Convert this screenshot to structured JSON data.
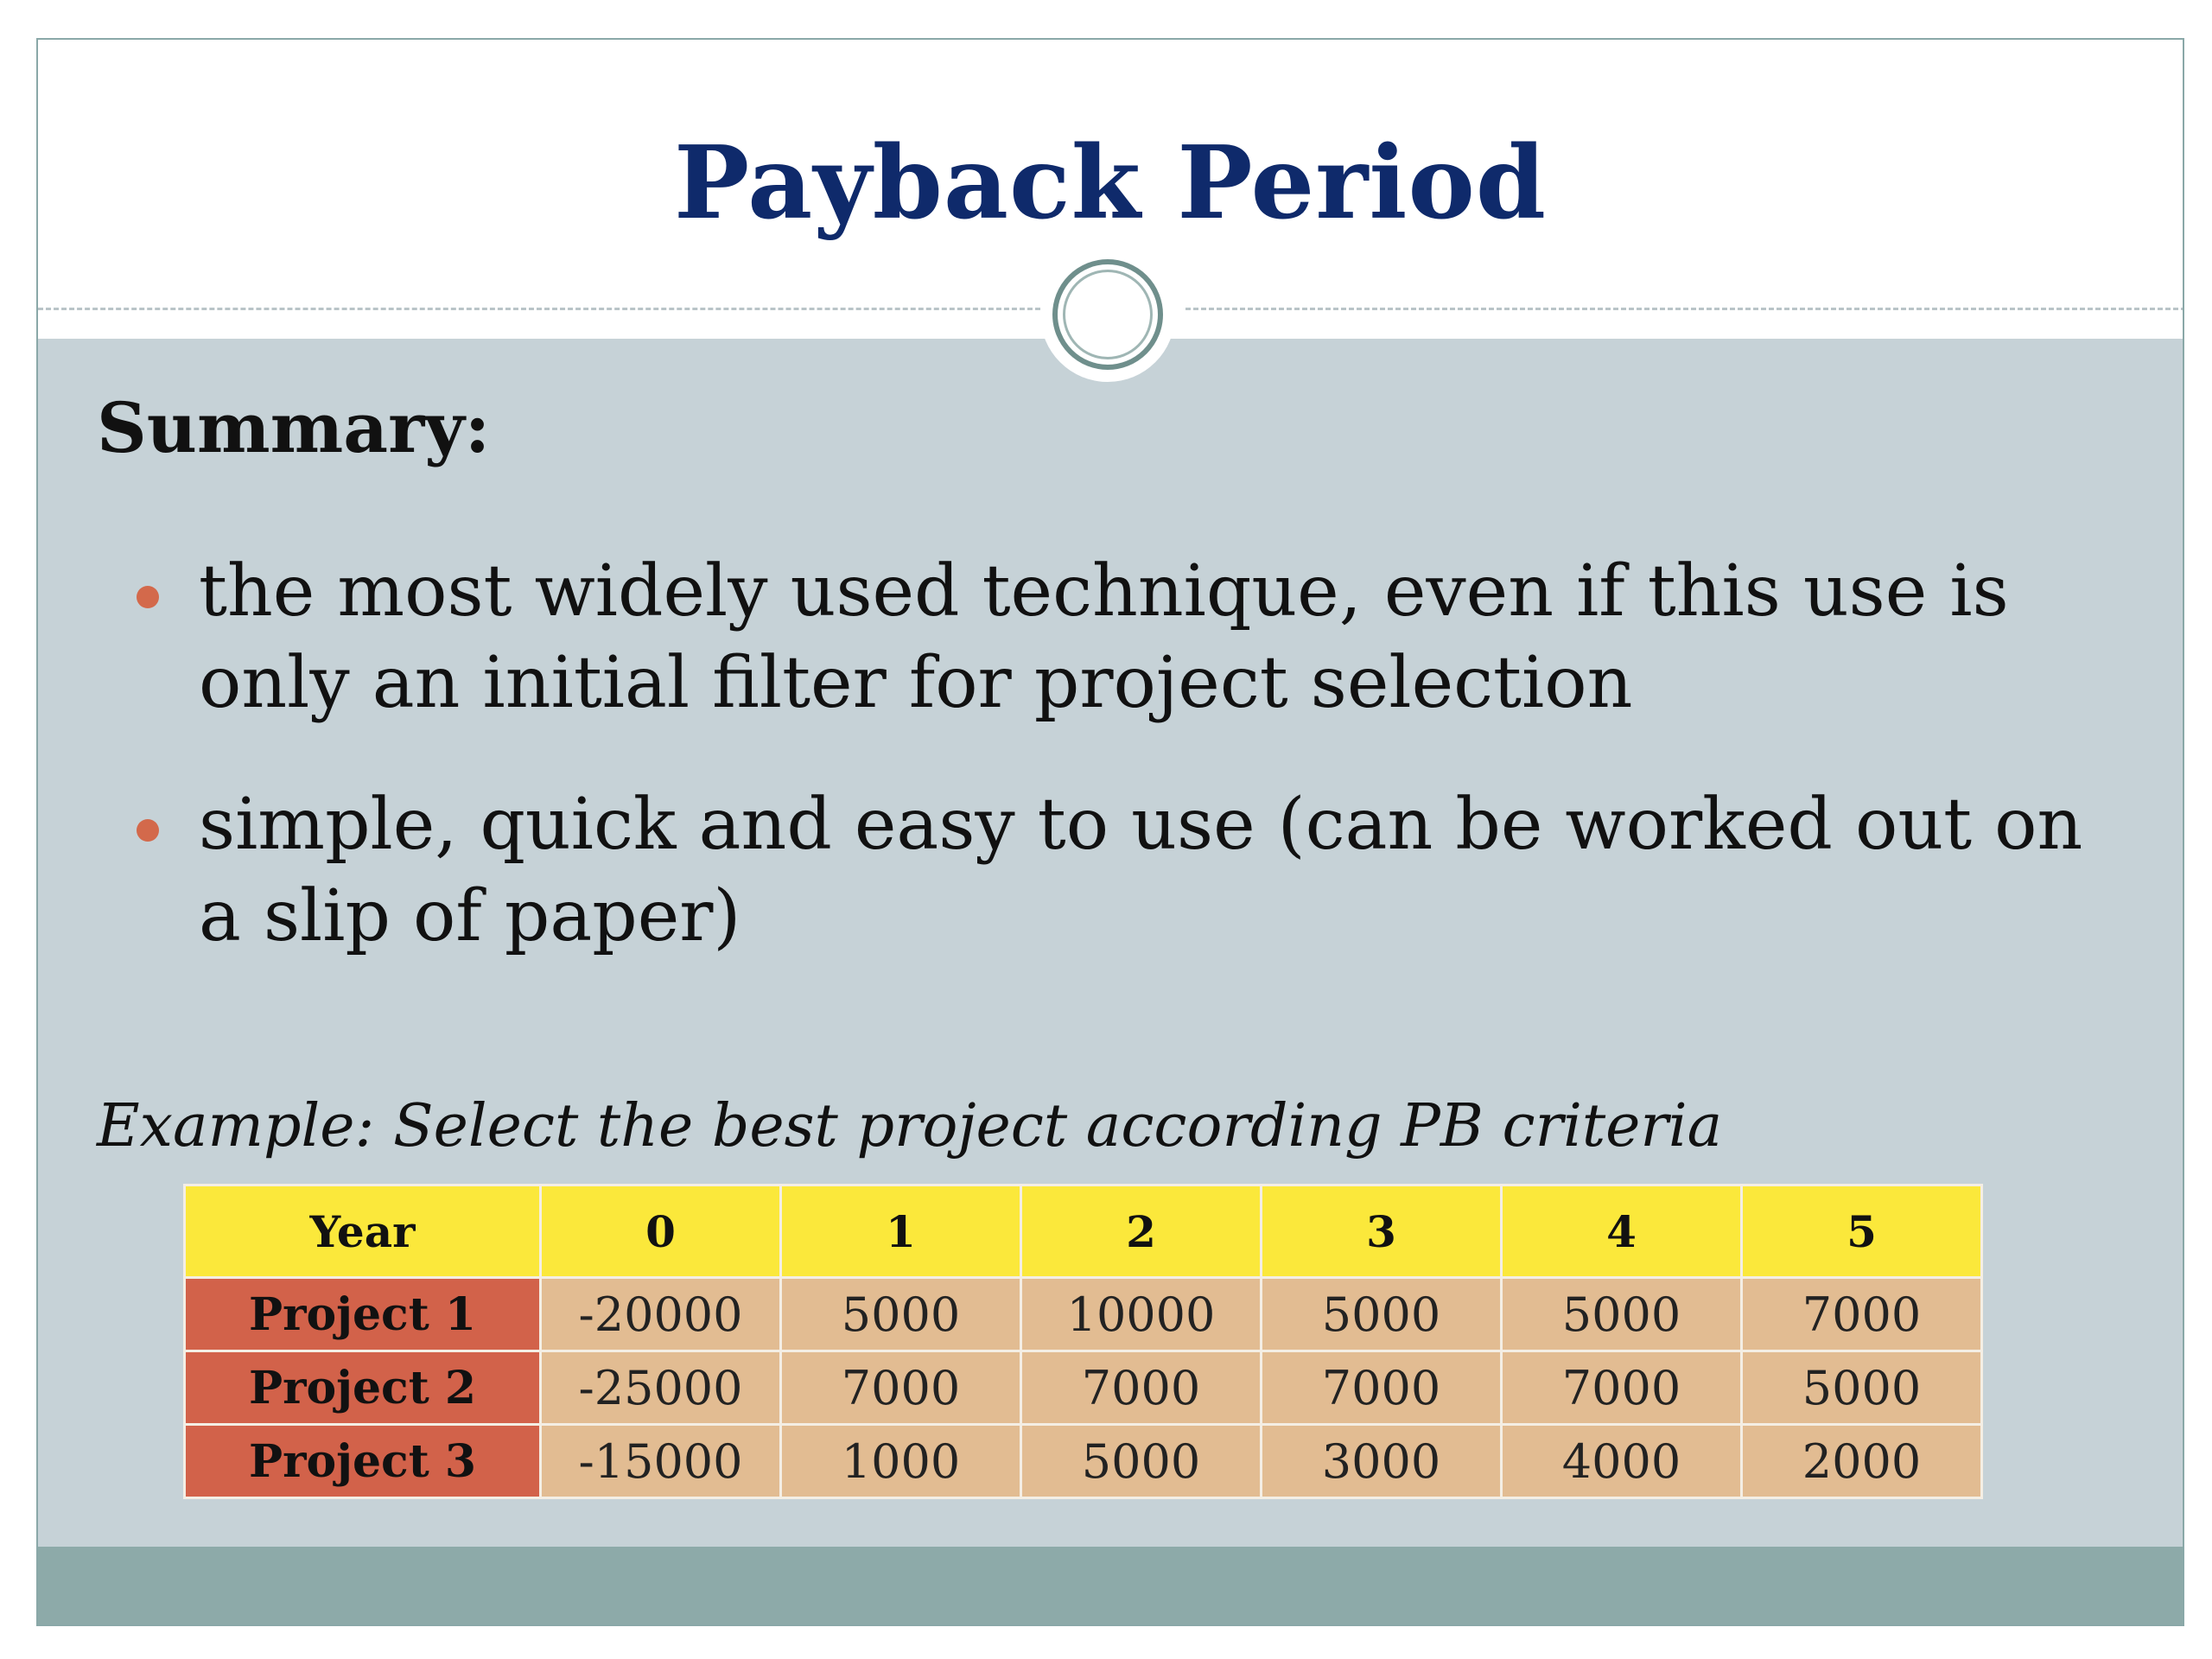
{
  "slide": {
    "title": "Payback Period",
    "summary_heading": "Summary:",
    "bullets": [
      "the most widely used technique, even if this use is only an initial filter for project selection",
      "simple, quick and easy to use (can be worked out on a slip of paper)"
    ],
    "example": "Example: Select the best project according PB criteria",
    "colors": {
      "title": "#0f2a6b",
      "bullet_dot": "#d3694b",
      "header_row": "#fbe83b",
      "row_header": "#d2624a",
      "cell": "#e2bc92",
      "footer": "#8daaa9"
    }
  },
  "table": {
    "header": [
      "Year",
      "0",
      "1",
      "2",
      "3",
      "4",
      "5"
    ],
    "rows": [
      {
        "label": "Project 1",
        "values": [
          "-20000",
          "5000",
          "10000",
          "5000",
          "5000",
          "7000"
        ]
      },
      {
        "label": "Project 2",
        "values": [
          "-25000",
          "7000",
          "7000",
          "7000",
          "7000",
          "5000"
        ]
      },
      {
        "label": "Project 3",
        "values": [
          "-15000",
          "1000",
          "5000",
          "3000",
          "4000",
          "2000"
        ]
      }
    ]
  }
}
